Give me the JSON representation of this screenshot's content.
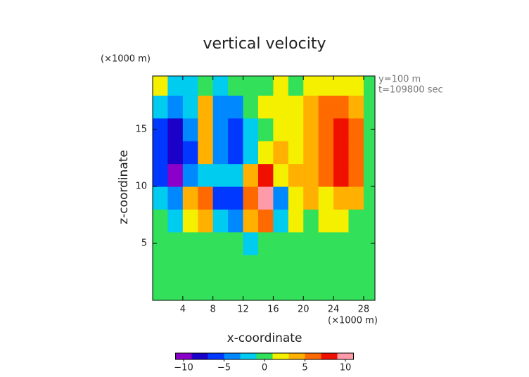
{
  "chart_data": {
    "type": "heatmap",
    "title": "vertical velocity",
    "ylabel": "z-coordinate",
    "xlabel": "x-coordinate",
    "yunit": "(×1000 m)",
    "xunit": "(×1000 m)",
    "annotations": [
      "y=100 m",
      "t=109800 sec"
    ],
    "xlim": [
      0,
      29.5
    ],
    "ylim": [
      0,
      19.7
    ],
    "xticks": [
      4,
      8,
      12,
      16,
      20,
      24,
      28
    ],
    "yticks": [
      5,
      10,
      15
    ],
    "x": [
      1,
      3,
      5,
      7,
      9,
      11,
      13,
      15,
      17,
      19,
      21,
      23,
      25,
      27,
      29
    ],
    "y": [
      1,
      3,
      5,
      7,
      9,
      11,
      13,
      15,
      17,
      19
    ],
    "z": [
      [
        0,
        -1,
        0,
        0,
        0,
        0,
        0,
        0,
        0,
        0,
        0,
        0,
        0,
        0,
        0
      ],
      [
        0,
        0,
        0,
        0,
        -1,
        0,
        0,
        0,
        0,
        0,
        0,
        0,
        0,
        0,
        0
      ],
      [
        0,
        -1,
        0,
        0,
        -1,
        0,
        -2,
        0,
        0,
        0,
        0,
        0,
        0,
        0,
        0
      ],
      [
        -1,
        -2,
        1,
        4,
        -3,
        -4,
        4,
        5,
        -3,
        1,
        0,
        1,
        1,
        0,
        0
      ],
      [
        -3,
        -5,
        3,
        6,
        -6,
        -7,
        6,
        9,
        -4,
        2,
        3,
        2,
        4,
        3,
        0
      ],
      [
        -6,
        -11,
        -4,
        -2,
        -3,
        -2,
        3,
        8,
        2,
        3,
        3,
        5,
        8,
        5,
        0
      ],
      [
        -7,
        -9,
        -6,
        3,
        -5,
        -6,
        -2,
        2,
        3,
        1,
        3,
        6,
        8,
        6,
        0
      ],
      [
        -6,
        -8,
        -5,
        4,
        -5,
        -7,
        -3,
        0,
        2,
        2,
        4,
        6,
        7,
        5,
        0
      ],
      [
        -2,
        -4,
        -3,
        3,
        -4,
        -4,
        -1,
        2,
        1,
        1,
        3,
        5,
        5,
        3,
        0
      ],
      [
        2,
        -2,
        -2,
        -1,
        -3,
        -1,
        0,
        0,
        1,
        0,
        1,
        2,
        2,
        1,
        0
      ]
    ],
    "colorbar": {
      "levels": [
        -11,
        -9,
        -7,
        -5,
        -3,
        -1,
        1,
        3,
        5,
        7,
        9,
        11
      ],
      "colors": [
        "#8a00c8",
        "#1a00c8",
        "#0038ff",
        "#0088ff",
        "#00ccf0",
        "#33e05a",
        "#f4f000",
        "#ffb000",
        "#ff6a00",
        "#f01000",
        "#ff9aa8"
      ],
      "ticks": [
        {
          "value": -10,
          "label": "−10"
        },
        {
          "value": -5,
          "label": "−5"
        },
        0,
        5,
        10
      ]
    }
  }
}
